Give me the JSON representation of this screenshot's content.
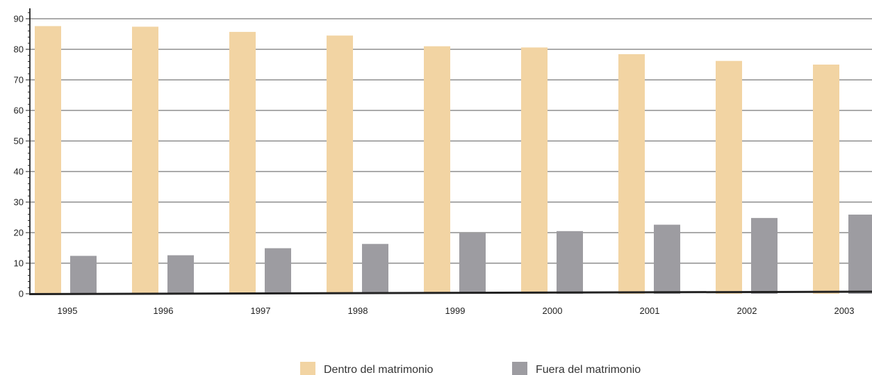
{
  "chart_data": {
    "type": "bar",
    "categories": [
      "1995",
      "1996",
      "1997",
      "1998",
      "1999",
      "2000",
      "2001",
      "2002",
      "2003"
    ],
    "series": [
      {
        "name": "Dentro del matrimonio",
        "values": [
          87.6,
          87.4,
          85.7,
          84.5,
          81.0,
          80.6,
          78.4,
          76.2,
          75.0
        ]
      },
      {
        "name": "Fuera del matrimonio",
        "values": [
          12.4,
          12.6,
          14.9,
          16.3,
          19.8,
          20.5,
          22.6,
          24.8,
          25.9
        ]
      }
    ],
    "yticks": [
      "0",
      "10",
      "20",
      "30",
      "40",
      "50",
      "60",
      "70",
      "80",
      "90"
    ],
    "ylim": [
      0,
      94
    ],
    "grid": true,
    "legend_position": "bottom",
    "colors": {
      "series_0": "#f2d4a3",
      "series_1": "#9d9ca1",
      "gridline": "#555555",
      "axis": "#222222"
    }
  }
}
